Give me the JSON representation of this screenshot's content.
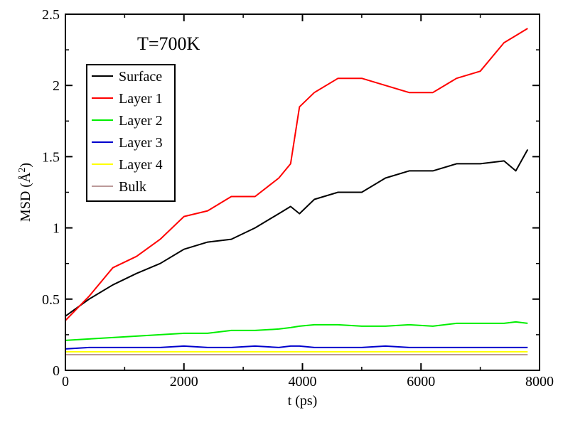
{
  "chart_data": {
    "type": "line",
    "title": "",
    "annotation": "T=700K",
    "xlabel": "t (ps)",
    "ylabel": "MSD (Å²)",
    "ylabel_base": "MSD (Å",
    "ylabel_sup": "2",
    "ylabel_close": ")",
    "xlim": [
      0,
      8000
    ],
    "ylim": [
      0,
      2.5
    ],
    "xticks": [
      0,
      2000,
      4000,
      6000,
      8000
    ],
    "yticks": [
      0,
      0.5,
      1,
      1.5,
      2,
      2.5
    ],
    "xtick_labels": [
      "0",
      "2000",
      "4000",
      "6000",
      "8000"
    ],
    "ytick_labels": [
      "0",
      "0.5",
      "1",
      "1.5",
      "2",
      "2.5"
    ],
    "grid": false,
    "legend_position": "top-left",
    "x": [
      0,
      400,
      800,
      1200,
      1600,
      2000,
      2400,
      2800,
      3200,
      3600,
      3800,
      3950,
      4200,
      4600,
      5000,
      5400,
      5800,
      6200,
      6600,
      7000,
      7400,
      7600,
      7800
    ],
    "series": [
      {
        "name": "Surface",
        "color": "#000000",
        "values": [
          0.38,
          0.5,
          0.6,
          0.68,
          0.75,
          0.85,
          0.9,
          0.92,
          1.0,
          1.1,
          1.15,
          1.1,
          1.2,
          1.25,
          1.25,
          1.35,
          1.4,
          1.4,
          1.45,
          1.45,
          1.47,
          1.4,
          1.55
        ]
      },
      {
        "name": "Layer 1",
        "color": "#ff0000",
        "values": [
          0.35,
          0.52,
          0.72,
          0.8,
          0.92,
          1.08,
          1.12,
          1.22,
          1.22,
          1.35,
          1.45,
          1.85,
          1.95,
          2.05,
          2.05,
          2.0,
          1.95,
          1.95,
          2.05,
          2.1,
          2.3,
          2.35,
          2.4
        ]
      },
      {
        "name": "Layer 2",
        "color": "#00ee00",
        "values": [
          0.21,
          0.22,
          0.23,
          0.24,
          0.25,
          0.26,
          0.26,
          0.28,
          0.28,
          0.29,
          0.3,
          0.31,
          0.32,
          0.32,
          0.31,
          0.31,
          0.32,
          0.31,
          0.33,
          0.33,
          0.33,
          0.34,
          0.33
        ]
      },
      {
        "name": "Layer 3",
        "color": "#0000cc",
        "values": [
          0.15,
          0.16,
          0.16,
          0.16,
          0.16,
          0.17,
          0.16,
          0.16,
          0.17,
          0.16,
          0.17,
          0.17,
          0.16,
          0.16,
          0.16,
          0.17,
          0.16,
          0.16,
          0.16,
          0.16,
          0.16,
          0.16,
          0.16
        ]
      },
      {
        "name": "Layer 4",
        "color": "#ffff00",
        "values": [
          0.13,
          0.13,
          0.13,
          0.13,
          0.13,
          0.13,
          0.13,
          0.13,
          0.13,
          0.13,
          0.13,
          0.13,
          0.13,
          0.13,
          0.13,
          0.13,
          0.13,
          0.13,
          0.13,
          0.13,
          0.13,
          0.13,
          0.13
        ]
      },
      {
        "name": "Bulk",
        "color": "#bb9999",
        "values": [
          0.11,
          0.11,
          0.11,
          0.11,
          0.11,
          0.11,
          0.11,
          0.11,
          0.11,
          0.11,
          0.11,
          0.11,
          0.11,
          0.11,
          0.11,
          0.11,
          0.11,
          0.11,
          0.11,
          0.11,
          0.11,
          0.11,
          0.11
        ]
      }
    ]
  }
}
